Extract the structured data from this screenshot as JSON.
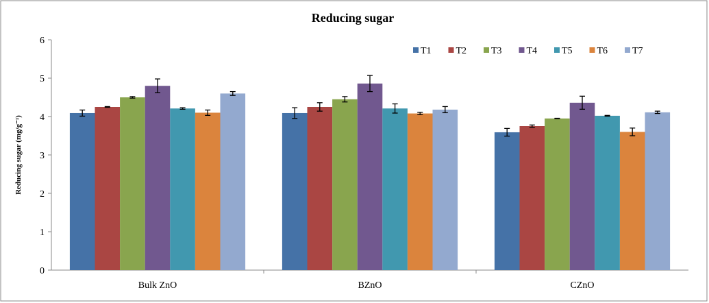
{
  "chart_data": {
    "type": "bar",
    "title": "Reducing sugar",
    "xlabel": "",
    "ylabel": "Reducing sugar (mg/g⁻¹)",
    "ylim": [
      0,
      6
    ],
    "yticks": [
      0,
      1,
      2,
      3,
      4,
      5,
      6
    ],
    "grid": false,
    "legend_position": "top-right",
    "categories": [
      "Bulk ZnO",
      "BZnO",
      "CZnO"
    ],
    "series": [
      {
        "name": "T1",
        "color": "#4572A7",
        "values": [
          4.09,
          4.09,
          3.59
        ],
        "errors": [
          0.08,
          0.14,
          0.1
        ]
      },
      {
        "name": "T2",
        "color": "#AA4643",
        "values": [
          4.25,
          4.25,
          3.75
        ],
        "errors": [
          0.01,
          0.11,
          0.03
        ]
      },
      {
        "name": "T3",
        "color": "#89A54E",
        "values": [
          4.5,
          4.45,
          3.95
        ],
        "errors": [
          0.02,
          0.07,
          0.005
        ]
      },
      {
        "name": "T4",
        "color": "#71588F",
        "values": [
          4.8,
          4.86,
          4.36
        ],
        "errors": [
          0.18,
          0.21,
          0.17
        ]
      },
      {
        "name": "T5",
        "color": "#4198AF",
        "values": [
          4.21,
          4.21,
          4.02
        ],
        "errors": [
          0.02,
          0.12,
          0.01
        ]
      },
      {
        "name": "T6",
        "color": "#DB843D",
        "values": [
          4.1,
          4.08,
          3.6
        ],
        "errors": [
          0.07,
          0.03,
          0.1
        ]
      },
      {
        "name": "T7",
        "color": "#93A9CF",
        "values": [
          4.6,
          4.18,
          4.11
        ],
        "errors": [
          0.05,
          0.08,
          0.03
        ]
      }
    ]
  }
}
